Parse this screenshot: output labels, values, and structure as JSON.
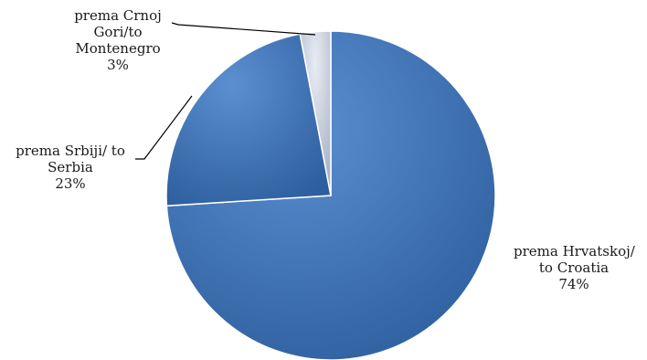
{
  "chart_data": {
    "type": "pie",
    "title": "",
    "slices": [
      {
        "name_line1": "prema Hrvatskoj/",
        "name_line2": "to Croatia",
        "value": 74,
        "value_label": "74%",
        "color": "#3f74ba"
      },
      {
        "name_line1": "prema Srbiji/ to",
        "name_line2": "Serbia",
        "value": 23,
        "value_label": "23%",
        "color": "#3f74ba"
      },
      {
        "name_line1": "prema Crnoj",
        "name_line2": "Gori/to",
        "name_line3": "Montenegro",
        "value": 3,
        "value_label": "3%",
        "color": "#d3dae6"
      }
    ],
    "legend": "none",
    "data_labels": "outside with leader lines"
  }
}
